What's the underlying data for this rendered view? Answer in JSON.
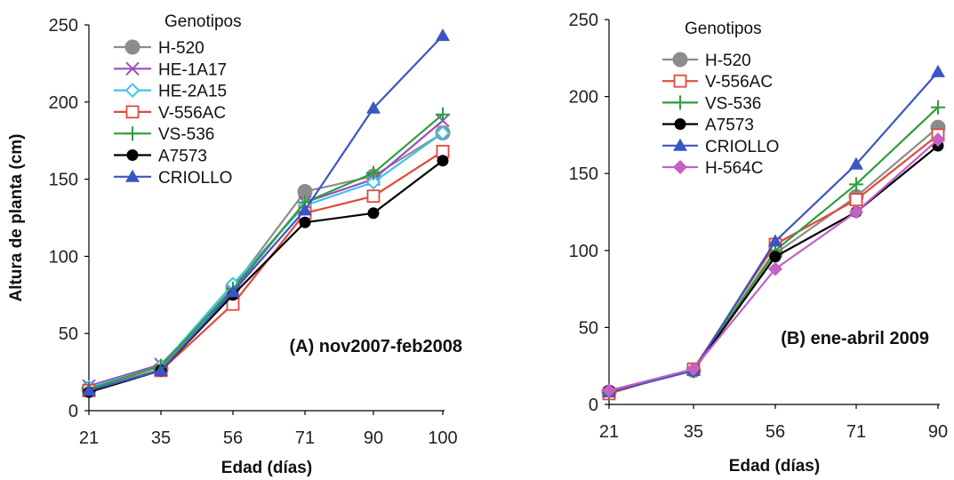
{
  "chart_data": [
    {
      "type": "line",
      "title": "",
      "annotation": "(A) nov2007-feb2008",
      "xlabel": "Edad (días)",
      "ylabel": "Altura de planta (cm)",
      "categories": [
        "21",
        "35",
        "56",
        "71",
        "90",
        "100"
      ],
      "ylim": [
        0,
        250
      ],
      "yticks": [
        0,
        50,
        100,
        150,
        200,
        250
      ],
      "legend_title": "Genotipos",
      "legend_position": "top-left",
      "grid": false,
      "series": [
        {
          "name": "H-520",
          "color": "#8c8c8c",
          "marker": "circle",
          "values": [
            14,
            27,
            80,
            142,
            152,
            180
          ]
        },
        {
          "name": "HE-1A17",
          "color": "#9b4fc0",
          "marker": "x",
          "values": [
            16,
            30,
            78,
            135,
            150,
            188
          ]
        },
        {
          "name": "HE-2A15",
          "color": "#3fc3e8",
          "marker": "diamond",
          "values": [
            15,
            29,
            82,
            133,
            148,
            180
          ]
        },
        {
          "name": "V-556AC",
          "color": "#e2493a",
          "marker": "square",
          "values": [
            13,
            26,
            69,
            128,
            139,
            168
          ]
        },
        {
          "name": "VS-536",
          "color": "#2e9e3e",
          "marker": "plus",
          "values": [
            14,
            29,
            79,
            135,
            154,
            192
          ]
        },
        {
          "name": "A7573",
          "color": "#000000",
          "marker": "circle-filled",
          "values": [
            12,
            26,
            75,
            122,
            128,
            162
          ]
        },
        {
          "name": "CRIOLLO",
          "color": "#3b55c4",
          "marker": "triangle",
          "values": [
            13,
            26,
            77,
            130,
            196,
            243
          ]
        }
      ]
    },
    {
      "type": "line",
      "title": "",
      "annotation": "(B) ene-abril 2009",
      "xlabel": "Edad (días)",
      "ylabel": "",
      "categories": [
        "21",
        "35",
        "56",
        "71",
        "90"
      ],
      "ylim": [
        0,
        250
      ],
      "yticks": [
        0,
        50,
        100,
        150,
        200,
        250
      ],
      "legend_title": "Genotipos",
      "legend_position": "top-left",
      "grid": false,
      "series": [
        {
          "name": "H-520",
          "color": "#8c8c8c",
          "marker": "circle",
          "values": [
            8,
            22,
            98,
            135,
            180
          ]
        },
        {
          "name": "V-556AC",
          "color": "#e2493a",
          "marker": "square",
          "values": [
            7,
            23,
            104,
            133,
            175
          ]
        },
        {
          "name": "VS-536",
          "color": "#2e9e3e",
          "marker": "plus",
          "values": [
            8,
            22,
            100,
            143,
            193
          ]
        },
        {
          "name": "A7573",
          "color": "#000000",
          "marker": "circle-filled",
          "values": [
            9,
            22,
            96,
            125,
            168
          ]
        },
        {
          "name": "CRIOLLO",
          "color": "#3b55c4",
          "marker": "triangle",
          "values": [
            8,
            22,
            106,
            156,
            216
          ]
        },
        {
          "name": "H-564C",
          "color": "#c560c4",
          "marker": "diamond-filled",
          "values": [
            9,
            23,
            88,
            125,
            172
          ]
        }
      ]
    }
  ]
}
